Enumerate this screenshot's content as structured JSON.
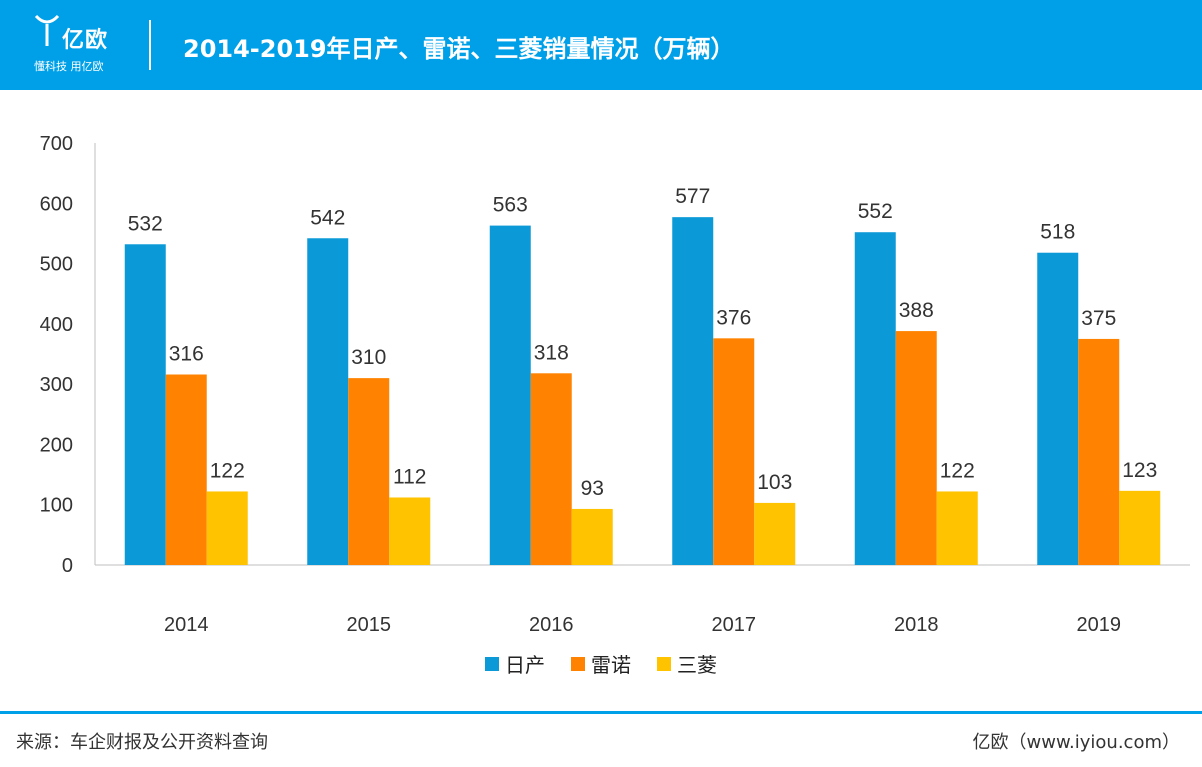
{
  "brand": {
    "name": "亿欧",
    "slogan": "懂科技 用亿欧"
  },
  "header": {
    "title": "2014-2019年日产、雷诺、三菱销量情况（万辆）"
  },
  "footer": {
    "source": "来源：车企财报及公开资料查询",
    "website": "亿欧（www.iyiou.com）"
  },
  "colors": {
    "header": "#00a0e9",
    "nissan": "#0b9ad7",
    "renault": "#ff8300",
    "mitsubishi": "#ffc300"
  },
  "chart_data": {
    "type": "bar",
    "categories": [
      "2014",
      "2015",
      "2016",
      "2017",
      "2018",
      "2019"
    ],
    "series": [
      {
        "name": "日产",
        "color": "#0b9ad7",
        "values": [
          532,
          542,
          563,
          577,
          552,
          518
        ]
      },
      {
        "name": "雷诺",
        "color": "#ff8300",
        "values": [
          316,
          310,
          318,
          376,
          388,
          375
        ]
      },
      {
        "name": "三菱",
        "color": "#ffc300",
        "values": [
          122,
          112,
          93,
          103,
          122,
          123
        ]
      }
    ],
    "ylim": [
      0,
      700
    ],
    "yticks": [
      0,
      100,
      200,
      300,
      400,
      500,
      600,
      700
    ],
    "grid": false,
    "legend": "bottom"
  }
}
